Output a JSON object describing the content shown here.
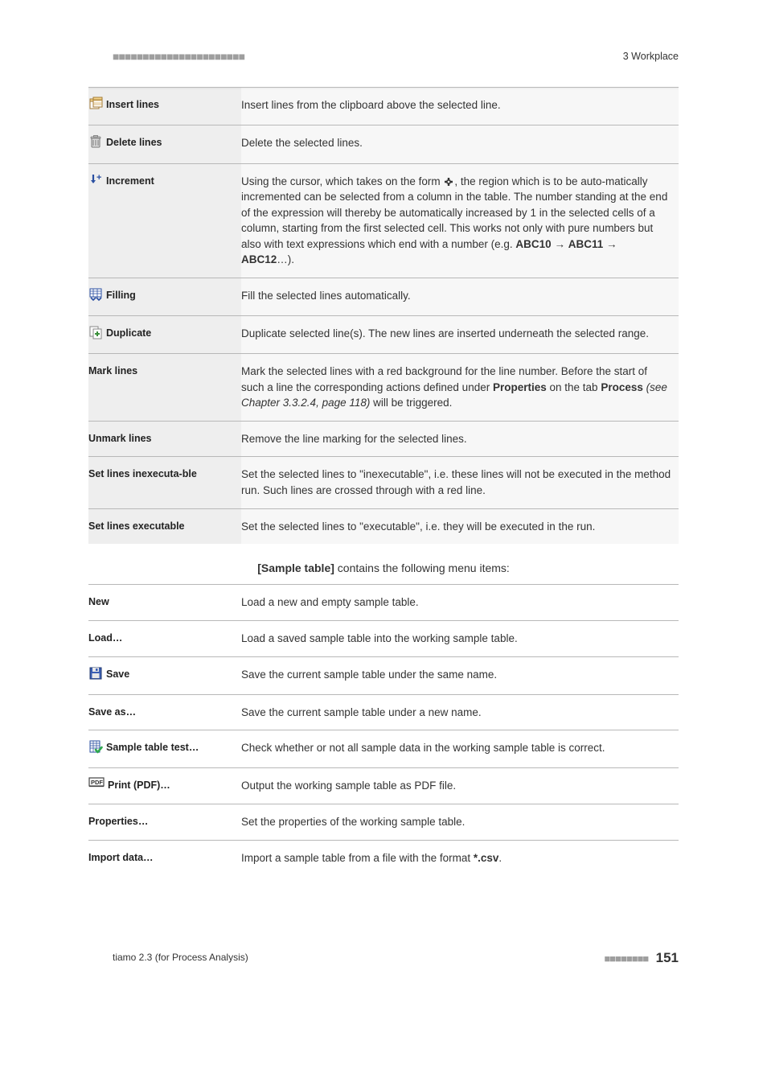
{
  "header": {
    "dots": "■■■■■■■■■■■■■■■■■■■■■■",
    "right": "3 Workplace"
  },
  "table1": {
    "rows": [
      {
        "icon": "insert-lines",
        "label": "Insert lines",
        "desc_html": "Insert lines from the clipboard above the selected line."
      },
      {
        "icon": "delete-lines",
        "label": "Delete lines",
        "desc_html": "Delete the selected lines."
      },
      {
        "icon": "increment",
        "label": "Increment",
        "desc_html": "Using the cursor, which takes on the form <svg style='vertical-align:-3px' width='14' height='14' viewBox='0 0 14 14'><path d='M7 2 v10 M2 7 h10' stroke='#333' stroke-width='2.4' fill='none'/><rect x='5.2' y='5.2' width='3.6' height='3.6' fill='#fff' stroke='#333' stroke-width='1.2'/></svg>, the region which is to be auto-matically incremented can be selected from a column in the table. The number standing at the end of the expression will thereby be automatically increased by 1 in the selected cells of a column, starting from the first selected cell. This works not only with pure numbers but also with text expressions which end with a number (e.g. <span class='bold'>ABC10</span> → <span class='bold'>ABC11</span> → <span class='bold'>ABC12</span>…)."
      },
      {
        "icon": "filling",
        "label": "Filling",
        "desc_html": "Fill the selected lines automatically."
      },
      {
        "icon": "duplicate",
        "label": "Duplicate",
        "desc_html": "Duplicate selected line(s). The new lines are inserted underneath the selected range."
      },
      {
        "icon": null,
        "label": "Mark lines",
        "desc_html": "Mark the selected lines with a red background for the line number. Before the start of such a line the corresponding actions defined under <span class='bold'>Properties</span> on the tab <span class='bold'>Process</span> <span class='italic'>(see Chapter 3.3.2.4, page 118)</span> will be triggered."
      },
      {
        "icon": null,
        "label": "Unmark lines",
        "desc_html": "Remove the line marking for the selected lines."
      },
      {
        "icon": null,
        "label": "Set lines inexecuta-ble",
        "desc_html": "Set the selected lines to \"inexecutable\", i.e. these lines will not be executed in the method run. Such lines are crossed through with a red line."
      },
      {
        "icon": null,
        "label": "Set lines executable",
        "desc_html": "Set the selected lines to \"executable\", i.e. they will be executed in the run."
      }
    ]
  },
  "caption_html": "<span class='bold'>[Sample table]</span> contains the following menu items:",
  "table2": {
    "rows": [
      {
        "icon": null,
        "label": "New",
        "desc_html": "Load a new and empty sample table."
      },
      {
        "icon": null,
        "label": "Load…",
        "desc_html": "Load a saved sample table into the working sample table."
      },
      {
        "icon": "save",
        "label": "Save",
        "desc_html": "Save the current sample table under the same name."
      },
      {
        "icon": null,
        "label": "Save as…",
        "desc_html": "Save the current sample table under a new name."
      },
      {
        "icon": "sample-test",
        "label": "Sample table test…",
        "desc_html": "Check whether or not all sample data in the working sample table is correct."
      },
      {
        "icon": "pdf",
        "label": "Print (PDF)…",
        "desc_html": "Output the working sample table as PDF file."
      },
      {
        "icon": null,
        "label": "Properties…",
        "desc_html": "Set the properties of the working sample table."
      },
      {
        "icon": null,
        "label": "Import data…",
        "desc_html": "Import a sample table from a file with the format <span class='bold'>*.csv</span>."
      }
    ]
  },
  "footer": {
    "left": "tiamo 2.3 (for Process Analysis)",
    "dots": "■■■■■■■■",
    "page": "151"
  },
  "icons_svg": {
    "insert-lines": "<svg width='18' height='18' viewBox='0 0 18 18'><rect x='2' y='3' width='11' height='12' fill='#fff' stroke='#a37a36' stroke-width='1'/><rect x='2' y='3' width='11' height='3' fill='#f6d58a' stroke='#a37a36' stroke-width='1'/><rect x='6' y='1' width='11' height='12' fill='#fff' stroke='#a37a36' stroke-width='1'/><rect x='6' y='1' width='11' height='3' fill='#f6d58a' stroke='#a37a36' stroke-width='1'/><path d='M6 5 h11 M6 8 h11 M6 10 h11' stroke='#cfa24b' stroke-width='0.8'/></svg>",
    "delete-lines": "<svg width='18' height='18' viewBox='0 0 18 18'><path d='M4 5 h10 v10 a1 1 0 0 1 -1 1 h-8 a1 1 0 0 1 -1 -1 z' fill='#ddd' stroke='#777' stroke-width='1'/><path d='M6 7 v7 M9 7 v7 M12 7 v7' stroke='#777' stroke-width='1'/><rect x='3' y='3' width='12' height='2.2' rx='1' fill='#bbb' stroke='#777' stroke-width='0.8'/><rect x='6.5' y='1.5' width='5' height='2' fill='#bbb' stroke='#777' stroke-width='0.8'/></svg>",
    "increment": "<svg width='18' height='18' viewBox='0 0 18 18'><path d='M6 2 v10' stroke='#2a4fa2' stroke-width='2.2'/><path d='M3 9 L6 13 L9 9 Z' fill='#2a4fa2'/><text x='10' y='9' font-size='11' font-weight='bold' fill='#2a4fa2'>+</text></svg>",
    "filling": "<svg width='18' height='18' viewBox='0 0 18 18'><rect x='2' y='2' width='14' height='10' fill='#fff' stroke='#2a4fa2' stroke-width='1'/><path d='M2 5 h14 M2 8 h14 M6 2 v10 M11 2 v10' stroke='#2a4fa2' stroke-width='0.8'/><path d='M3 13 l3 3 l3 -3' stroke='#2a4fa2' stroke-width='1.6' fill='none'/><path d='M10 13 l3 3 l3 -3' stroke='#2a4fa2' stroke-width='1.6' fill='none'/></svg>",
    "duplicate": "<svg width='18' height='18' viewBox='0 0 18 18'><rect x='2' y='2' width='10' height='12' fill='#fff' stroke='#888' stroke-width='1'/><rect x='6' y='5' width='10' height='12' fill='#fff' stroke='#888' stroke-width='1'/><path d='M11 8 v6 M8 11 h6' stroke='#3a8f3a' stroke-width='2'/></svg>",
    "save": "<svg width='18' height='18' viewBox='0 0 18 18'><rect x='2' y='2' width='14' height='14' fill='#3b5fb4' stroke='#22386e' stroke-width='1'/><rect x='5' y='2' width='8' height='5' fill='#e8e8e8'/><rect x='9' y='3' width='2.5' height='3' fill='#3b5fb4'/><rect x='4.5' y='9' width='9' height='6' fill='#e8e8e8'/></svg>",
    "sample-test": "<svg width='18' height='18' viewBox='0 0 18 18'><rect x='2' y='2' width='12' height='14' fill='#fff' stroke='#2a4fa2' stroke-width='1'/><path d='M2 5 h12 M2 8 h12 M2 11 h12 M6 2 v14 M10 2 v14' stroke='#2a4fa2' stroke-width='0.7'/><path d='M9 13 l2.5 3 l5 -6' stroke='#2fa84f' stroke-width='2.6' fill='none' stroke-linecap='round' stroke-linejoin='round'/></svg>",
    "pdf": "<svg width='20' height='16' viewBox='0 0 20 16'><rect x='1' y='1' width='18' height='10' fill='#fff' stroke='#444' stroke-width='1.2'/><text x='3' y='9' font-size='7.5' font-weight='bold' fill='#333'>PDF</text><path d='M1 11.5 h18' stroke='#444' stroke-width='1.2'/></svg>"
  }
}
